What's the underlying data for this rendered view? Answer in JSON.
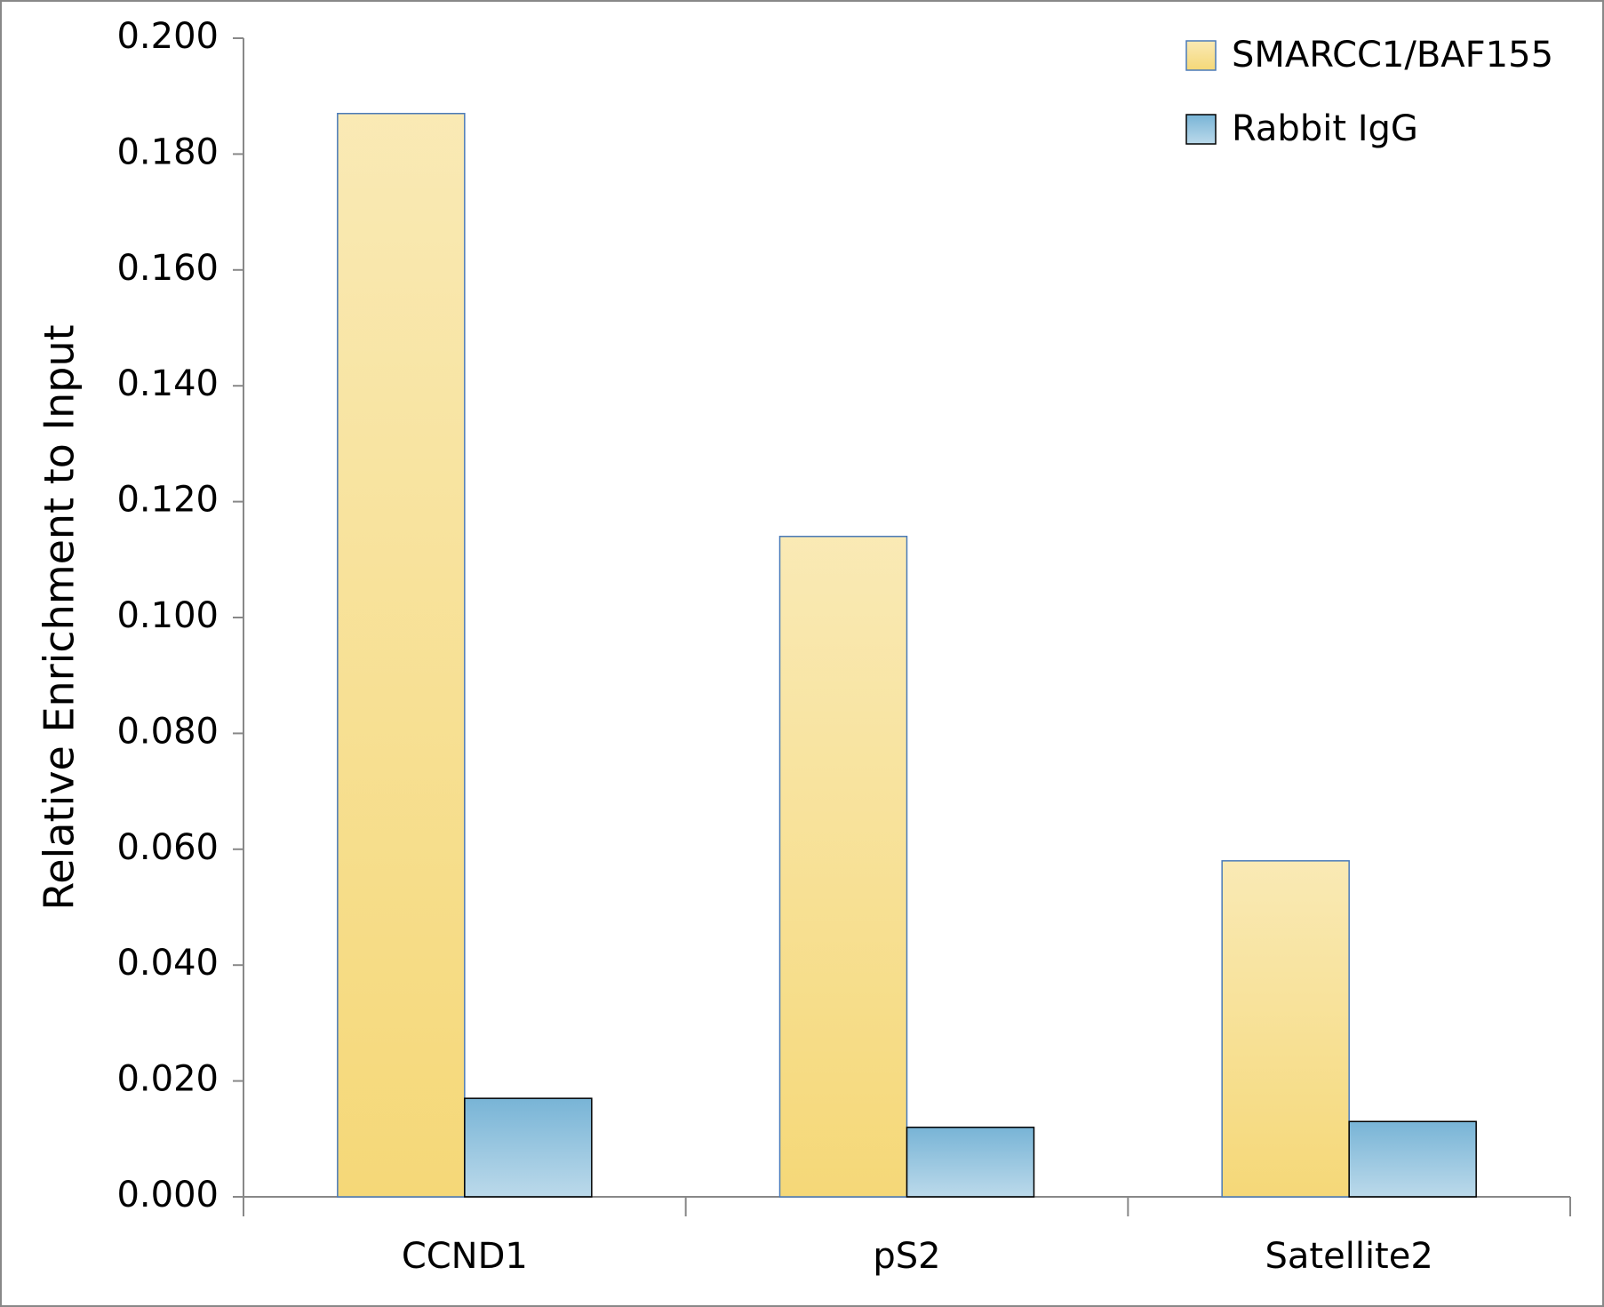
{
  "chart_data": {
    "type": "bar",
    "y_label": "Relative Enrichment to Input",
    "categories": [
      "CCND1",
      "pS2",
      "Satellite2"
    ],
    "series": [
      {
        "name": "SMARCC1/BAF155",
        "color": "#f5d878",
        "values": [
          0.187,
          0.114,
          0.058
        ]
      },
      {
        "name": "Rabbit IgG",
        "color": "#78b4d6",
        "values": [
          0.017,
          0.012,
          0.013
        ]
      }
    ],
    "ylim": [
      0,
      0.2
    ],
    "yticks": [
      {
        "value": 0,
        "label": "0.000"
      },
      {
        "value": 0.02,
        "label": "0.020"
      },
      {
        "value": 0.04,
        "label": "0.040"
      },
      {
        "value": 0.06,
        "label": "0.060"
      },
      {
        "value": 0.08,
        "label": "0.080"
      },
      {
        "value": 0.1,
        "label": "0.100"
      },
      {
        "value": 0.12,
        "label": "0.120"
      },
      {
        "value": 0.14,
        "label": "0.140"
      },
      {
        "value": 0.16,
        "label": "0.160"
      },
      {
        "value": 0.18,
        "label": "0.180"
      },
      {
        "value": 0.2,
        "label": "0.200"
      }
    ],
    "legend": "top-right"
  }
}
